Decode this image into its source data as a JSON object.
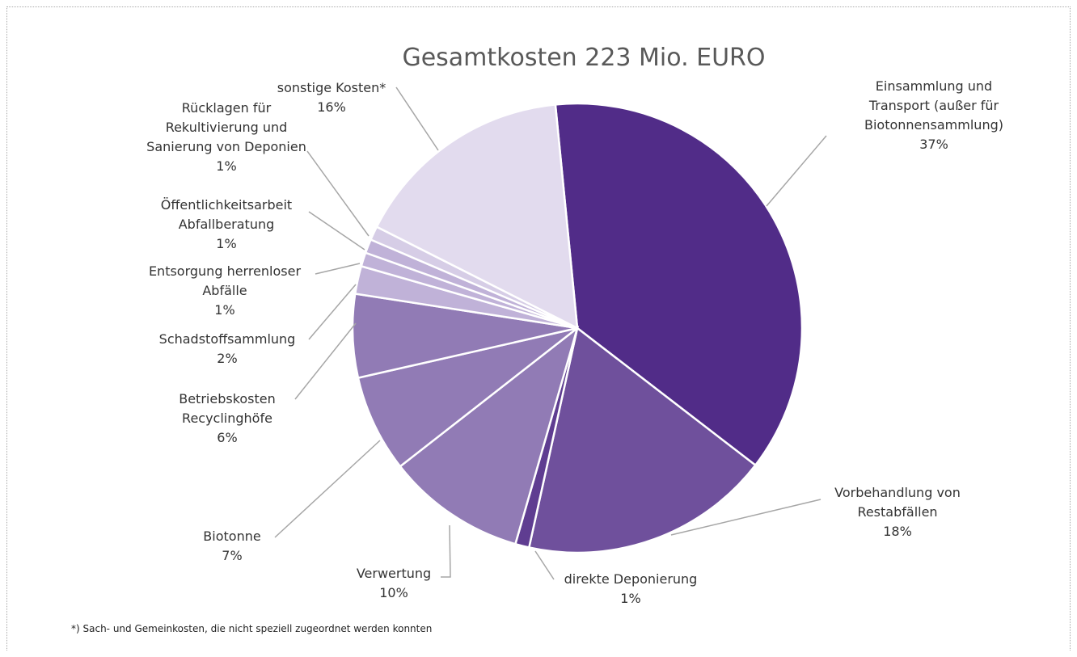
{
  "chart_data": {
    "type": "pie",
    "title": "Gesamtkosten 223 Mio. EURO",
    "categories": [
      "Einsammlung und Transport (außer für Biotonnensammlung)",
      "Vorbehandlung von Restabfällen",
      "direkte Deponierung",
      "Verwertung",
      "Biotonne",
      "Betriebskosten Recyclinghöfe",
      "Schadstoffsammlung",
      "Entsorgung herrenloser Abfälle",
      "Öffentlichkeitsarbeit Abfallberatung",
      "Rücklagen für Rekultivierung und Sanierung von Deponien",
      "sonstige Kosten*"
    ],
    "values": [
      37,
      18,
      1,
      10,
      7,
      6,
      2,
      1,
      1,
      1,
      16
    ],
    "value_labels": [
      "37%",
      "18%",
      "1%",
      "10%",
      "7%",
      "6%",
      "2%",
      "1%",
      "1%",
      "1%",
      "16%"
    ],
    "colors": [
      "#512c88",
      "#6f509c",
      "#5f3d91",
      "#917bb5",
      "#917bb5",
      "#917bb5",
      "#c0b2d8",
      "#c0b2d8",
      "#c0b2d8",
      "#d6cde6",
      "#e2dbee"
    ],
    "footnote": "*) Sach- und Gemeinkosten, die nicht speziell zugeordnet werden konnten"
  }
}
